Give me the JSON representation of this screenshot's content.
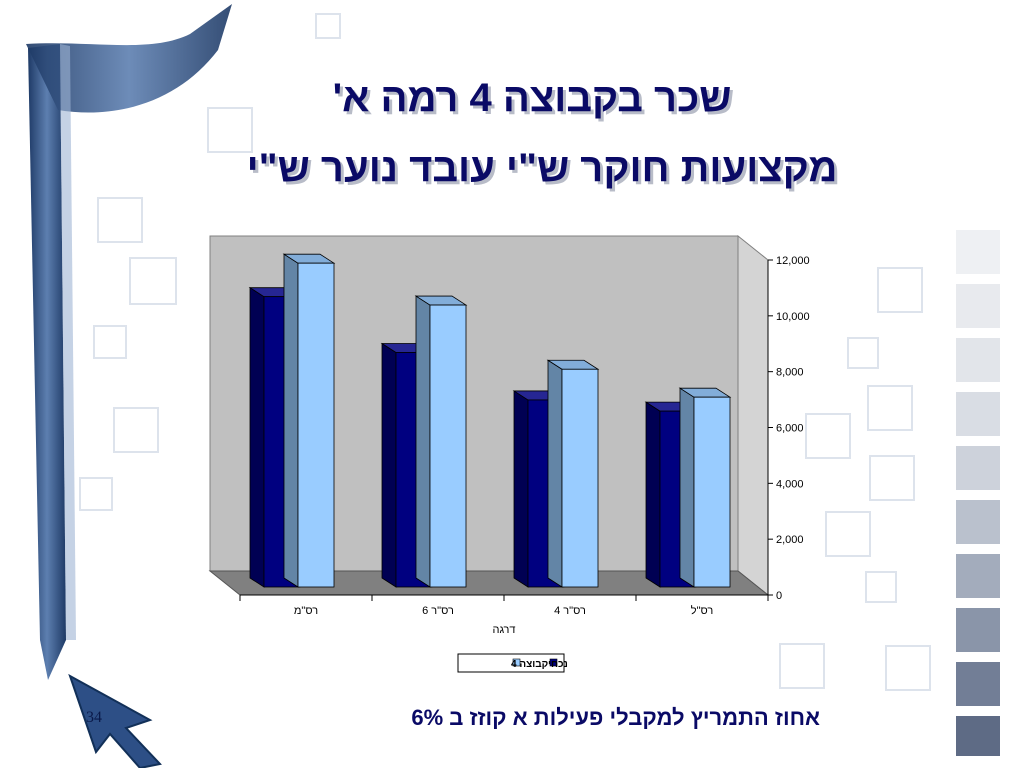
{
  "slide": {
    "title_line1": "שכר בקבוצה 4 רמה א'",
    "title_line2": "מקצועות חוקר ש\"י עובד נוער ש\"י",
    "note": "אחוז התמריץ למקבלי פעילות א קוזז ב 6%",
    "page_number": "34"
  },
  "colors": {
    "title": "#0a0a66",
    "series_current": "#000080",
    "series_group4": "#99ccff",
    "plot_wall": "#c0c0c0",
    "floor": "#808080"
  },
  "chart_data": {
    "type": "bar",
    "style": "3d-clustered",
    "categories": [
      "רס\"מ",
      "רס\"ר 6",
      "רס\"ר 4",
      "רס\"ל"
    ],
    "series": [
      {
        "name": "נכחי",
        "values": [
          10400,
          8400,
          6700,
          6300
        ]
      },
      {
        "name": "קבוצה 4",
        "values": [
          11600,
          10100,
          7800,
          6800
        ]
      }
    ],
    "xlabel": "דרגה",
    "ylabel": "",
    "ylim": [
      0,
      12000
    ],
    "yticks": [
      "0",
      "2,000",
      "4,000",
      "6,000",
      "8,000",
      "10,000",
      "12,000"
    ],
    "y_axis_position": "right",
    "grid": false,
    "legend_position": "bottom"
  }
}
